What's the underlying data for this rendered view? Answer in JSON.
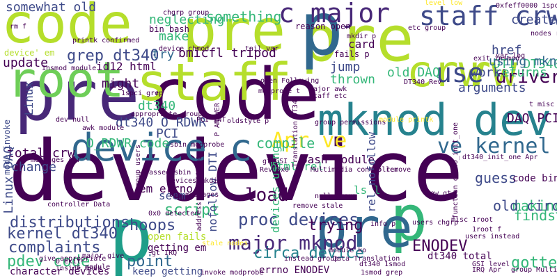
{
  "word_cloud": {
    "background": "#ffffff",
    "palette": [
      "#440154",
      "#482878",
      "#3e4a89",
      "#31688e",
      "#26828e",
      "#1f9e89",
      "#35b779",
      "#6ece58",
      "#b5de2b",
      "#fde725"
    ],
    "words": [
      {
        "text": "dev",
        "color": "#440154"
      },
      {
        "text": "device",
        "color": "#440154"
      },
      {
        "text": "pre",
        "color": "#482878"
      },
      {
        "text": "code",
        "color": "#440154"
      },
      {
        "text": "code",
        "color": "#b5de2b"
      },
      {
        "text": "pre",
        "color": "#b5de2b"
      },
      {
        "text": "pre",
        "color": "#b5de2b"
      },
      {
        "text": "p",
        "color": "#31688e"
      },
      {
        "text": "root",
        "color": "#6ece58"
      },
      {
        "text": "staff",
        "color": "#b5de2b"
      },
      {
        "text": "crw",
        "color": "#b5de2b"
      },
      {
        "text": "rw",
        "color": "#b5de2b"
      },
      {
        "text": "mknod dev",
        "color": "#26828e"
      },
      {
        "text": "device c",
        "color": "#31688e"
      },
      {
        "text": "p",
        "color": "#1f9e89"
      },
      {
        "text": "p",
        "color": "#35b779"
      },
      {
        "text": "pre",
        "color": "#31688e"
      },
      {
        "text": "c major",
        "color": "#482878"
      },
      {
        "text": "staff crw",
        "color": "#3e4a89"
      },
      {
        "text": "use",
        "color": "#3e4a89"
      },
      {
        "text": "driver",
        "color": "#440154"
      },
      {
        "text": "Apr ve",
        "color": "#fde725"
      },
      {
        "text": "ve kernel",
        "color": "#31688e"
      },
      {
        "text": "major mknod",
        "color": "#482878"
      },
      {
        "text": "proc devices",
        "color": "#3e4a89"
      },
      {
        "text": "load",
        "color": "#440154"
      },
      {
        "text": "ENODEV",
        "color": "#440154"
      },
      {
        "text": "something",
        "color": "#35b779"
      },
      {
        "text": "grep dt340",
        "color": "#3e4a89"
      },
      {
        "text": "kernel dt340",
        "color": "#3e4a89"
      },
      {
        "text": "pdev code",
        "color": "#35b779"
      },
      {
        "text": "circa device",
        "color": "#26828e"
      },
      {
        "text": "complaints",
        "color": "#3e4a89"
      },
      {
        "text": "distributions",
        "color": "#3e4a89"
      },
      {
        "text": "point",
        "color": "#31688e"
      },
      {
        "text": "hoops",
        "color": "#3e4a89"
      },
      {
        "text": "script",
        "color": "#35b779"
      },
      {
        "text": "trying",
        "color": "#440154"
      },
      {
        "text": "gotten",
        "color": "#35b779"
      },
      {
        "text": "making",
        "color": "#35b779"
      },
      {
        "text": "finds",
        "color": "#35b779"
      },
      {
        "text": "old circa",
        "color": "#3e4a89"
      },
      {
        "text": "guess",
        "color": "#3e4a89"
      },
      {
        "text": "compile",
        "color": "#35b779"
      },
      {
        "text": "DAQ PCI",
        "color": "#440154"
      },
      {
        "text": "DTI DT340",
        "color": "#35b779"
      },
      {
        "text": "returns",
        "color": "#35b779"
      },
      {
        "text": "work",
        "color": "#3e4a89"
      },
      {
        "text": "arguments",
        "color": "#3e4a89"
      },
      {
        "text": "old DAQ",
        "color": "#35b779"
      },
      {
        "text": "thrown",
        "color": "#35b779"
      },
      {
        "text": "jump",
        "color": "#3e4a89"
      },
      {
        "text": "card",
        "color": "#440154"
      },
      {
        "text": "href",
        "color": "#3e4a89"
      },
      {
        "text": "using mknod",
        "color": "#31688e"
      },
      {
        "text": "create",
        "color": "#3e4a89"
      },
      {
        "text": "neglecting",
        "color": "#35b779"
      },
      {
        "text": "somewhat old",
        "color": "#3e4a89"
      },
      {
        "text": "bmicfl tripod",
        "color": "#440154"
      },
      {
        "text": "id12 html",
        "color": "#440154"
      },
      {
        "text": "might",
        "color": "#440154"
      },
      {
        "text": "update",
        "color": "#440154"
      },
      {
        "text": "make",
        "color": "#35b779"
      },
      {
        "text": "try",
        "color": "#31688e"
      },
      {
        "text": "dt340",
        "color": "#35b779"
      },
      {
        "text": "dt340 O_RDWR",
        "color": "#3e4a89"
      },
      {
        "text": "PCI",
        "color": "#3e4a89"
      },
      {
        "text": "O_RDWR code",
        "color": "#35b779"
      },
      {
        "text": "total crw",
        "color": "#440154"
      },
      {
        "text": "change",
        "color": "#3e4a89"
      },
      {
        "text": "seem",
        "color": "#3e4a89"
      },
      {
        "text": "em errno",
        "color": "#440154"
      },
      {
        "text": "html rel",
        "color": "#35b779"
      },
      {
        "text": "bash module",
        "color": "#440154"
      },
      {
        "text": "code bin",
        "color": "#440154"
      },
      {
        "text": "ls l",
        "color": "#35b779"
      },
      {
        "text": "rel nofollow",
        "color": "#3e4a89"
      },
      {
        "text": "nofollow DTI",
        "color": "#3e4a89"
      },
      {
        "text": "devices using",
        "color": "#35b779"
      },
      {
        "text": "Linux DAQ",
        "color": "#3e4a89"
      },
      {
        "text": "Linux",
        "color": "#3e4a89"
      },
      {
        "text": "open fails",
        "color": "#b5de2b"
      },
      {
        "text": "getting em",
        "color": "#440154"
      },
      {
        "text": "keep getting",
        "color": "#3e4a89"
      },
      {
        "text": "character devices",
        "color": "#440154"
      },
      {
        "text": "errno ENODEV",
        "color": "#440154"
      },
      {
        "text": "dt340 total",
        "color": "#440154"
      },
      {
        "text": "bin bash",
        "color": "#440154"
      },
      {
        "text": "reason open",
        "color": "#440154"
      },
      {
        "text": "device' em",
        "color": "#b5de2b"
      },
      {
        "text": "mode invoke",
        "color": "#3e4a89"
      },
      {
        "text": "fails p",
        "color": "#440154"
      },
      {
        "text": "chgrp group",
        "color": "#440154"
      },
      {
        "text": "device chmod",
        "color": "#440154"
      },
      {
        "text": "tail var",
        "color": "#440154"
      },
      {
        "text": "mkdir p",
        "color": "#440154"
      },
      {
        "text": "etc group",
        "color": "#440154"
      },
      {
        "text": "0xfeff0000 1spci",
        "color": "#440154"
      },
      {
        "text": "level low",
        "color": "#fde725"
      },
      {
        "text": "nodes rm",
        "color": "#440154"
      },
      {
        "text": "var log",
        "color": "#440154"
      },
      {
        "text": "exit insmod",
        "color": "#440154"
      },
      {
        "text": "insmod module",
        "color": "#440154"
      },
      {
        "text": "rm f",
        "color": "#440154"
      },
      {
        "text": "printk confirmed",
        "color": "#440154"
      },
      {
        "text": "DT340 Rev",
        "color": "#440154"
      },
      {
        "text": "modprobe t",
        "color": "#440154"
      },
      {
        "text": "1spci grep",
        "color": "#440154"
      },
      {
        "text": "open Following",
        "color": "#440154"
      },
      {
        "text": "major awk",
        "color": "#440154"
      },
      {
        "text": "staff etc",
        "color": "#440154"
      },
      {
        "text": "appropriate group",
        "color": "#440154"
      },
      {
        "text": "dev null",
        "color": "#440154"
      },
      {
        "text": "awk module",
        "color": "#440154"
      },
      {
        "text": "group permissions",
        "color": "#440154"
      },
      {
        "text": "module printk",
        "color": "#fde725"
      },
      {
        "text": "function dt340_init_one",
        "color": "#440154"
      },
      {
        "text": "dt340_init_one Apr",
        "color": "#440154"
      },
      {
        "text": "Multimedia controller",
        "color": "#440154"
      },
      {
        "text": "GSI level",
        "color": "#440154"
      },
      {
        "text": "IRQ Apr",
        "color": "#440154"
      },
      {
        "text": "module ko",
        "color": "#440154"
      },
      {
        "text": "remove stale",
        "color": "#440154"
      },
      {
        "text": "null group",
        "color": "#440154"
      },
      {
        "text": "info p",
        "color": "#440154"
      },
      {
        "text": "users chgrp",
        "color": "#440154"
      },
      {
        "text": "misc 1root",
        "color": "#440154"
      },
      {
        "text": "1root f",
        "color": "#440154"
      },
      {
        "text": "users instead",
        "color": "#440154"
      },
      {
        "text": "group Multimedia",
        "color": "#440154"
      },
      {
        "text": "instead group",
        "color": "#440154"
      },
      {
        "text": "Data Translation",
        "color": "#440154"
      },
      {
        "text": "dt340 1smod",
        "color": "#440154"
      },
      {
        "text": "1smod grep",
        "color": "#440154"
      },
      {
        "text": "invoke modprobe",
        "color": "#440154"
      },
      {
        "text": "gt IRQ",
        "color": "#440154"
      },
      {
        "text": "major give",
        "color": "#440154"
      },
      {
        "text": "s module",
        "color": "#440154"
      },
      {
        "text": "0 exit",
        "color": "#440154"
      },
      {
        "text": "inside open",
        "color": "#440154"
      },
      {
        "text": "messages Apr",
        "color": "#440154"
      },
      {
        "text": "controller Data",
        "color": "#440154"
      },
      {
        "text": "give appropriate",
        "color": "#440154"
      },
      {
        "text": "group users",
        "color": "#440154"
      },
      {
        "text": "passed sbin",
        "color": "#440154"
      },
      {
        "text": "sbin modprobe",
        "color": "#440154"
      },
      {
        "text": "devices mkdir",
        "color": "#440154"
      },
      {
        "text": "log messages",
        "color": "#440154"
      },
      {
        "text": "0x0 detected",
        "color": "#440154"
      },
      {
        "text": "address 0xfeff0000",
        "color": "#440154"
      },
      {
        "text": "oldstyle p",
        "color": "#440154"
      },
      {
        "text": "P ANSWER",
        "color": "#440154"
      },
      {
        "text": "gt GSI",
        "color": "#440154"
      },
      {
        "text": "Rev 0x0",
        "color": "#440154"
      },
      {
        "text": "ko remove",
        "color": "#440154"
      },
      {
        "text": "low gt",
        "color": "#440154"
      },
      {
        "text": "PCI INT",
        "color": "#440154"
      },
      {
        "text": "stale nodes",
        "color": "#fde725"
      },
      {
        "text": "Translation DT340",
        "color": "#440154"
      },
      {
        "text": "t misc",
        "color": "#440154"
      }
    ]
  }
}
